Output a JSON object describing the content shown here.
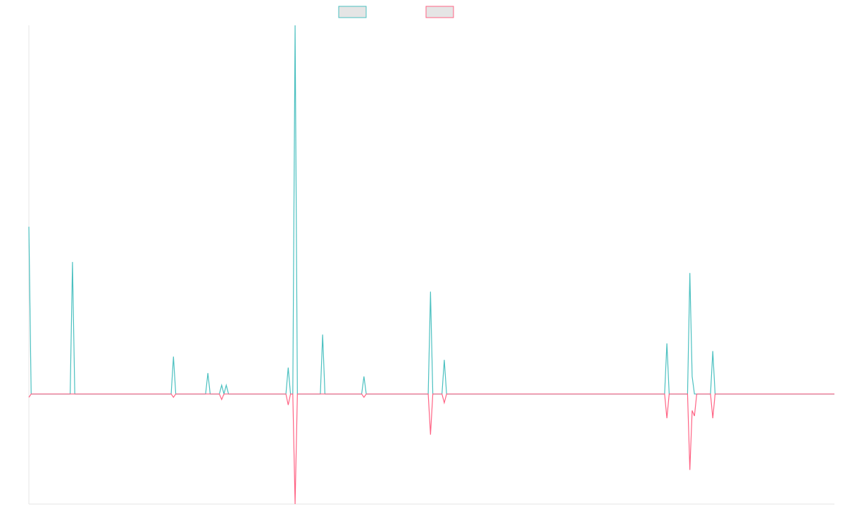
{
  "chart_data": {
    "type": "line",
    "title": "",
    "xlabel": "",
    "ylabel": "",
    "x_count": 352,
    "ylim": [
      -100,
      335
    ],
    "grid": false,
    "legend": {
      "placement": "top-center"
    },
    "colors": {
      "series_a": "#4bc0c0",
      "series_b": "#ff6384",
      "legend_fill": "#e5e5e5",
      "axis": "#e6e6e6"
    },
    "series": [
      {
        "name": "",
        "color": "#4bc0c0",
        "points": [
          [
            0,
            152
          ],
          [
            1,
            0
          ],
          [
            18,
            0
          ],
          [
            19,
            120
          ],
          [
            20,
            0
          ],
          [
            62,
            0
          ],
          [
            63,
            34
          ],
          [
            64,
            0
          ],
          [
            77,
            0
          ],
          [
            78,
            19
          ],
          [
            79,
            0
          ],
          [
            83,
            0
          ],
          [
            84,
            8
          ],
          [
            85,
            0
          ],
          [
            86,
            8
          ],
          [
            87,
            0
          ],
          [
            112,
            0
          ],
          [
            113,
            24
          ],
          [
            114,
            0
          ],
          [
            115,
            0
          ],
          [
            116,
            335
          ],
          [
            117,
            0
          ],
          [
            127,
            0
          ],
          [
            128,
            54
          ],
          [
            129,
            0
          ],
          [
            145,
            0
          ],
          [
            146,
            16
          ],
          [
            147,
            0
          ],
          [
            174,
            0
          ],
          [
            175,
            93
          ],
          [
            176,
            0
          ],
          [
            180,
            0
          ],
          [
            181,
            31
          ],
          [
            182,
            0
          ],
          [
            277,
            0
          ],
          [
            278,
            46
          ],
          [
            279,
            0
          ],
          [
            287,
            0
          ],
          [
            288,
            110
          ],
          [
            289,
            16
          ],
          [
            290,
            0
          ],
          [
            297,
            0
          ],
          [
            298,
            39
          ],
          [
            299,
            0
          ],
          [
            351,
            0
          ]
        ]
      },
      {
        "name": "",
        "color": "#ff6384",
        "points": [
          [
            0,
            -3
          ],
          [
            1,
            0
          ],
          [
            62,
            0
          ],
          [
            63,
            -3
          ],
          [
            64,
            0
          ],
          [
            83,
            0
          ],
          [
            84,
            -5
          ],
          [
            85,
            0
          ],
          [
            112,
            0
          ],
          [
            113,
            -10
          ],
          [
            114,
            0
          ],
          [
            115,
            0
          ],
          [
            116,
            -100
          ],
          [
            117,
            0
          ],
          [
            145,
            0
          ],
          [
            146,
            -3
          ],
          [
            147,
            0
          ],
          [
            174,
            0
          ],
          [
            175,
            -37
          ],
          [
            176,
            0
          ],
          [
            180,
            0
          ],
          [
            181,
            -8
          ],
          [
            182,
            0
          ],
          [
            277,
            0
          ],
          [
            278,
            -22
          ],
          [
            279,
            0
          ],
          [
            287,
            0
          ],
          [
            288,
            -69
          ],
          [
            289,
            -15
          ],
          [
            290,
            -20
          ],
          [
            291,
            0
          ],
          [
            297,
            0
          ],
          [
            298,
            -22
          ],
          [
            299,
            0
          ],
          [
            351,
            0
          ]
        ]
      }
    ]
  }
}
